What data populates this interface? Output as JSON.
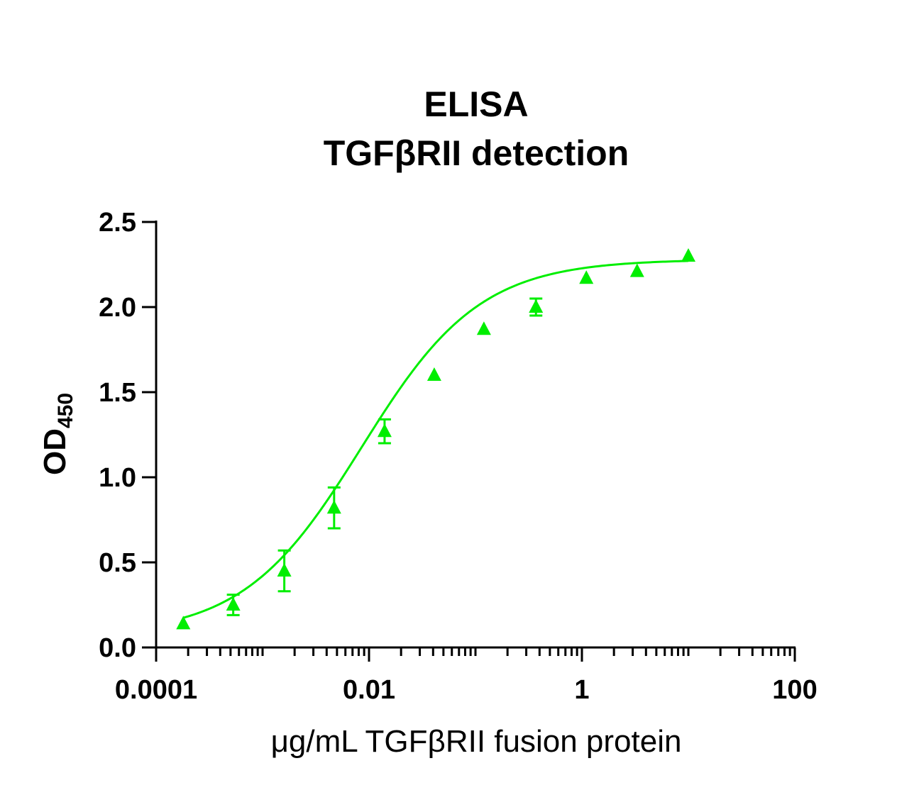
{
  "chart_data": {
    "type": "scatter",
    "title_lines": [
      "ELISA",
      "TGFβRII detection"
    ],
    "xlabel": "μg/mL TGFβRII fusion protein",
    "ylabel_main": "OD",
    "ylabel_sub": "450",
    "x_scale": "log",
    "xlim": [
      0.0001,
      100
    ],
    "ylim": [
      0,
      2.5
    ],
    "x_ticks": [
      0.0001,
      0.01,
      1,
      100
    ],
    "x_tick_labels": [
      "0.0001",
      "0.01",
      "1",
      "100"
    ],
    "y_ticks": [
      0,
      0.5,
      1,
      1.5,
      2,
      2.5
    ],
    "y_tick_labels": [
      "0.0",
      "0.5",
      "1.0",
      "1.5",
      "2.0",
      "2.5"
    ],
    "color": "#00ee00",
    "marker": "triangle",
    "grid": false,
    "fit": "4PL sigmoid",
    "series": [
      {
        "x": [
          0.00018,
          0.00053,
          0.0016,
          0.0047,
          0.014,
          0.041,
          0.12,
          0.37,
          1.1,
          3.3,
          10
        ],
        "y": [
          0.14,
          0.25,
          0.45,
          0.82,
          1.27,
          1.6,
          1.87,
          2.0,
          2.17,
          2.21,
          2.3
        ],
        "err": [
          0,
          0.06,
          0.12,
          0.12,
          0.07,
          0,
          0,
          0.05,
          0,
          0,
          0
        ]
      }
    ]
  }
}
